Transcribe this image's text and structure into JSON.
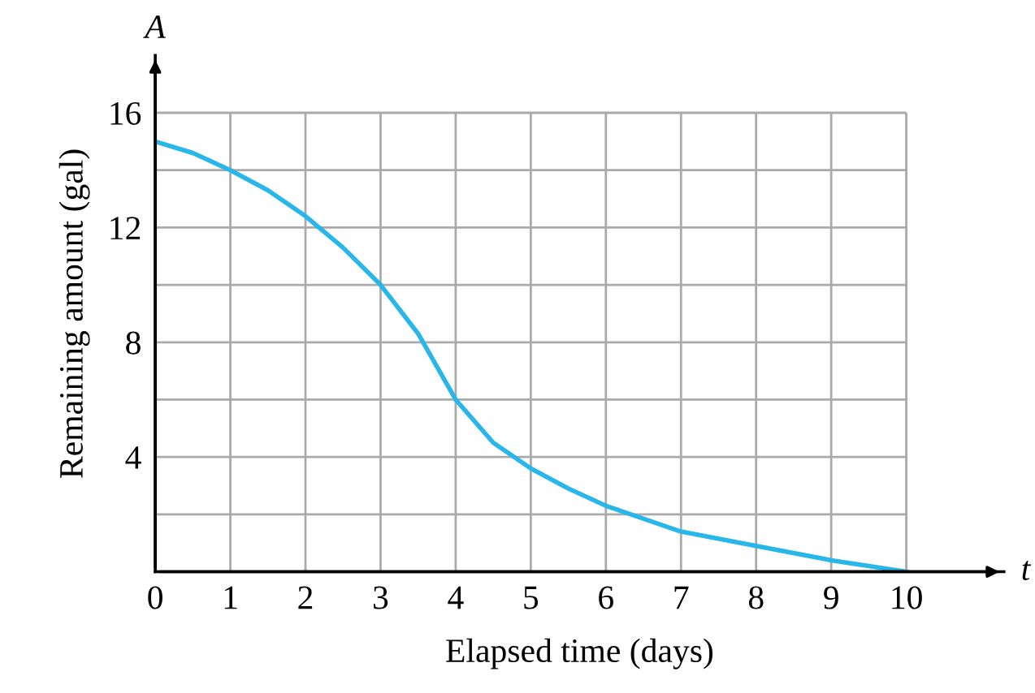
{
  "chart_data": {
    "type": "line",
    "xlabel": "Elapsed time (days)",
    "ylabel": "Remaining amount (gal)",
    "annotations": [
      "A",
      "t"
    ],
    "x": [
      0,
      0.5,
      1,
      1.5,
      2,
      2.5,
      3,
      3.5,
      4,
      4.5,
      5,
      5.5,
      6,
      7,
      8,
      9,
      10
    ],
    "series": [
      {
        "color": "#29b6e8",
        "values": [
          15,
          14.6,
          14,
          13.3,
          12.4,
          11.3,
          10,
          8.3,
          6,
          4.5,
          3.6,
          2.9,
          2.3,
          1.4,
          0.9,
          0.4,
          0
        ]
      }
    ],
    "xlim": [
      0,
      11.3
    ],
    "ylim": [
      0,
      18
    ],
    "xticks": [
      0,
      1,
      2,
      3,
      4,
      5,
      6,
      7,
      8,
      9,
      10
    ],
    "yticks": [
      {
        "value": 0,
        "label": null
      },
      {
        "value": 2,
        "label": null
      },
      4,
      {
        "value": 6,
        "label": null
      },
      8,
      {
        "value": 10,
        "label": null
      },
      12,
      {
        "value": 14,
        "label": null
      },
      16
    ],
    "grid": true,
    "marker": "none",
    "line_style": "solid"
  }
}
